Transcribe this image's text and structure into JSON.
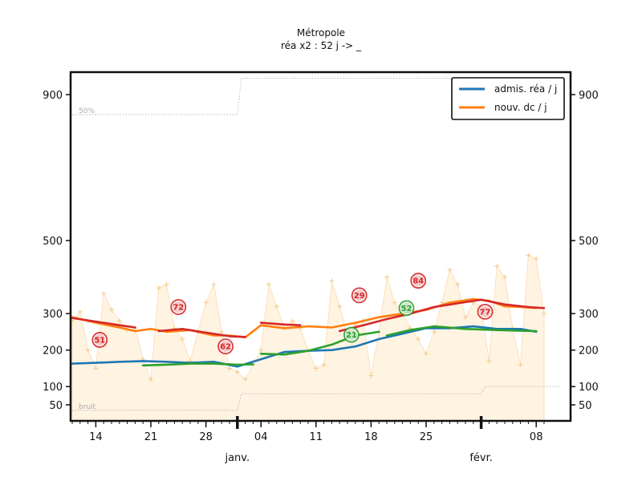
{
  "chart_data": {
    "type": "line",
    "title": "Métropole",
    "subtitle": "réa x2 : 52 j -> _",
    "xlabel": "",
    "ylabel": "",
    "ylim": [
      0,
      960
    ],
    "y_ticks": [
      50,
      100,
      200,
      300,
      500,
      900
    ],
    "x_range_days": [
      0,
      60
    ],
    "x_ticks": [
      {
        "day": 3,
        "label": "14"
      },
      {
        "day": 10,
        "label": "21"
      },
      {
        "day": 17,
        "label": "28"
      },
      {
        "day": 24,
        "label": "04"
      },
      {
        "day": 31,
        "label": "11"
      },
      {
        "day": 38,
        "label": "18"
      },
      {
        "day": 45,
        "label": "25"
      },
      {
        "day": 59,
        "label": "08"
      }
    ],
    "month_labels": [
      {
        "day": 21,
        "label": "janv."
      },
      {
        "day": 52,
        "label": "févr."
      }
    ],
    "reference_lines": [
      {
        "name": "50%",
        "label": "50%",
        "x": [
          0,
          21,
          21.5,
          62
        ],
        "values": [
          845,
          845,
          945,
          945
        ]
      },
      {
        "name": "bruit",
        "label": "bruit",
        "x": [
          0,
          21,
          21.5,
          52,
          52.5,
          62
        ],
        "values": [
          35,
          35,
          80,
          80,
          100,
          100
        ]
      }
    ],
    "raw_daily": {
      "name": "daily admissions (raw)",
      "x": [
        0,
        1,
        2,
        3,
        4,
        5,
        6,
        7,
        8,
        9,
        10,
        11,
        12,
        13,
        14,
        15,
        16,
        17,
        18,
        19,
        20,
        21,
        22,
        23,
        24,
        25,
        26,
        27,
        28,
        29,
        30,
        31,
        32,
        33,
        34,
        35,
        36,
        37,
        38,
        39,
        40,
        41,
        42,
        43,
        44,
        45,
        46,
        47,
        48,
        49,
        50,
        51,
        52,
        53,
        54,
        55,
        56,
        57,
        58,
        59,
        60
      ],
      "values": [
        280,
        305,
        200,
        150,
        355,
        310,
        280,
        255,
        260,
        175,
        120,
        370,
        380,
        260,
        230,
        170,
        250,
        330,
        380,
        250,
        150,
        140,
        120,
        160,
        200,
        380,
        320,
        260,
        280,
        260,
        200,
        150,
        160,
        390,
        320,
        240,
        270,
        280,
        130,
        250,
        400,
        330,
        300,
        260,
        230,
        190,
        250,
        330,
        420,
        380,
        290,
        330,
        320,
        170,
        430,
        400,
        260,
        160,
        460,
        450,
        300
      ]
    },
    "series": [
      {
        "name": "admis. réa / j",
        "color": "#1f77b4",
        "x": [
          0,
          3,
          6,
          9,
          12,
          15,
          18,
          21,
          24,
          27,
          30,
          33,
          36,
          39,
          42,
          45,
          48,
          51,
          54,
          57,
          59
        ],
        "values": [
          163,
          165,
          168,
          170,
          168,
          165,
          168,
          155,
          175,
          195,
          198,
          200,
          210,
          230,
          245,
          260,
          260,
          265,
          258,
          258,
          250
        ]
      },
      {
        "name": "nouv. dc / j",
        "color": "#ff7f0e",
        "x": [
          0,
          3,
          6,
          8,
          10,
          12,
          15,
          18,
          20,
          22,
          24,
          27,
          30,
          33,
          36,
          39,
          42,
          45,
          48,
          51,
          53,
          55,
          57,
          59
        ],
        "values": [
          290,
          275,
          262,
          252,
          258,
          250,
          255,
          240,
          240,
          235,
          268,
          260,
          265,
          262,
          275,
          290,
          300,
          310,
          330,
          340,
          335,
          320,
          318,
          315
        ]
      }
    ],
    "trend_segments": [
      {
        "name": "trend-up-admissions",
        "color": "#2ca02c",
        "x": [
          9,
          12,
          15,
          18,
          21,
          23
        ],
        "values": [
          158,
          160,
          163,
          163,
          160,
          161
        ]
      },
      {
        "name": "trend-up-admissions-2",
        "color": "#2ca02c",
        "x": [
          24,
          27,
          30,
          33,
          36,
          39
        ],
        "values": [
          190,
          188,
          198,
          215,
          240,
          250
        ]
      },
      {
        "name": "trend-up-admissions-3",
        "color": "#2ca02c",
        "x": [
          40,
          43,
          46,
          50,
          54,
          57,
          59
        ],
        "values": [
          240,
          255,
          265,
          258,
          255,
          253,
          252
        ]
      },
      {
        "name": "trend-down-deaths",
        "color": "#d62728",
        "x": [
          0,
          3,
          6,
          8
        ],
        "values": [
          288,
          278,
          268,
          262
        ]
      },
      {
        "name": "trend-down-deaths-2",
        "color": "#d62728",
        "x": [
          11,
          14,
          17,
          20,
          22
        ],
        "values": [
          252,
          258,
          248,
          238,
          236
        ]
      },
      {
        "name": "trend-down-deaths-3",
        "color": "#d62728",
        "x": [
          24,
          27,
          29
        ],
        "values": [
          275,
          270,
          268
        ]
      },
      {
        "name": "trend-up-deaths-4",
        "color": "#d62728",
        "x": [
          34,
          37,
          40,
          43,
          46,
          49,
          52
        ],
        "values": [
          252,
          268,
          285,
          300,
          318,
          328,
          338
        ]
      },
      {
        "name": "trend-down-deaths-5",
        "color": "#d62728",
        "x": [
          52,
          55,
          58,
          60
        ],
        "values": [
          338,
          325,
          318,
          315
        ]
      }
    ],
    "badges": [
      {
        "day": 3.5,
        "value": 228,
        "label": "51",
        "color": "#d62728"
      },
      {
        "day": 13.5,
        "value": 318,
        "label": "72",
        "color": "#d62728"
      },
      {
        "day": 19.5,
        "value": 210,
        "label": "62",
        "color": "#d62728"
      },
      {
        "day": 36.5,
        "value": 350,
        "label": "29",
        "color": "#d62728"
      },
      {
        "day": 35.5,
        "value": 242,
        "label": "21",
        "color": "#2ca02c"
      },
      {
        "day": 42.5,
        "value": 315,
        "label": "52",
        "color": "#2ca02c"
      },
      {
        "day": 44,
        "value": 390,
        "label": "84",
        "color": "#d62728"
      },
      {
        "day": 52.5,
        "value": 305,
        "label": "77",
        "color": "#d62728"
      }
    ],
    "legend": [
      {
        "label": "admis. réa / j",
        "color": "#1f77b4"
      },
      {
        "label": "nouv. dc / j",
        "color": "#ff7f0e"
      }
    ],
    "legend_position": "top-right",
    "grid": false
  }
}
